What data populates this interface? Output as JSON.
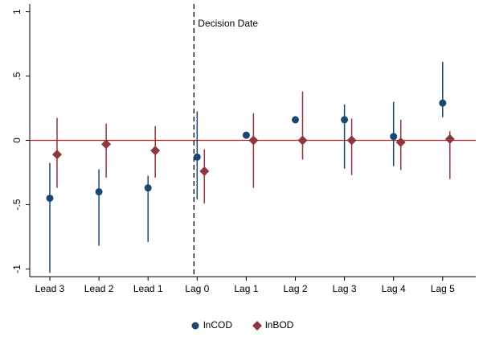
{
  "chart_data": {
    "type": "coefplot",
    "categories": [
      "Lead 3",
      "Lead 2",
      "Lead 1",
      "Lag 0",
      "Lag 1",
      "Lag 2",
      "Lag 3",
      "Lag 4",
      "Lag 5"
    ],
    "series": [
      {
        "name": "lnCOD",
        "color": "#1a476f",
        "marker": "circle",
        "values": [
          -0.45,
          -0.4,
          -0.37,
          -0.13,
          0.04,
          0.16,
          0.16,
          0.03,
          0.29
        ],
        "ci_low": [
          -1.03,
          -0.82,
          -0.79,
          -0.46,
          0.03,
          0.14,
          -0.22,
          -0.2,
          0.18
        ],
        "ci_high": [
          -0.175,
          -0.225,
          -0.275,
          0.225,
          0.06,
          0.18,
          0.28,
          0.3,
          0.61
        ]
      },
      {
        "name": "lnBOD",
        "color": "#90353b",
        "marker": "diamond",
        "values": [
          -0.11,
          -0.03,
          -0.08,
          -0.24,
          0.0,
          0.0,
          0.0,
          -0.015,
          0.01
        ],
        "ci_low": [
          -0.37,
          -0.29,
          -0.29,
          -0.49,
          -0.37,
          -0.15,
          -0.27,
          -0.23,
          -0.3
        ],
        "ci_high": [
          0.175,
          0.13,
          0.11,
          -0.07,
          0.21,
          0.38,
          0.17,
          0.16,
          0.07
        ]
      }
    ],
    "ylim": [
      -1.06,
      1.06
    ],
    "yticks": [
      {
        "value": -1,
        "label": "-1"
      },
      {
        "value": -0.5,
        "label": "-.5"
      },
      0,
      {
        "value": 0.5,
        "label": ".5"
      },
      1
    ],
    "reference_line": 0,
    "annotation": "Decision Date",
    "legend": "bottom"
  }
}
